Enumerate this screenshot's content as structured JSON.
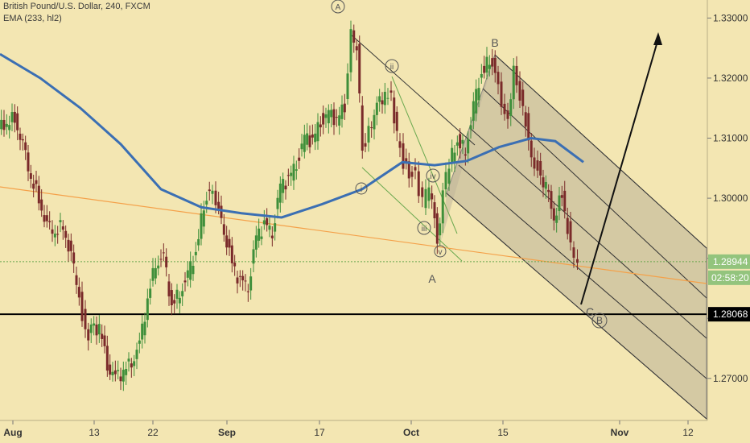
{
  "header": {
    "title": "British Pound/U.S. Dollar, 240, FXCM",
    "indicator": "EMA (233, hl2)"
  },
  "colors": {
    "background": "#f3e6b2",
    "up_candle": "#3f8f3a",
    "down_candle": "#7a2a2a",
    "ema": "#3b6fb3",
    "trendline": "#f4a14a",
    "support": "#000000",
    "pitchfork_fill": "#bfb59a",
    "axis_panel": "#f3e6b2"
  },
  "chart_data": {
    "type": "line",
    "title": "British Pound/U.S. Dollar, 240, FXCM",
    "xlabel": "",
    "ylabel": "",
    "ylim": [
      1.263,
      1.333
    ],
    "x_ticks": [
      "Aug",
      "13",
      "22",
      "Sep",
      "17",
      "Oct",
      "15",
      "Nov",
      "12"
    ],
    "y_ticks": [
      1.27,
      1.28,
      1.29,
      1.3,
      1.31,
      1.32,
      1.33
    ],
    "y_tick_labels": [
      "1.27000",
      "1.28000",
      "1.29000",
      "1.30000",
      "1.31000",
      "1.32000",
      "1.33000"
    ],
    "series": [
      {
        "name": "British Pound/U.S. Dollar",
        "kind": "close",
        "points": [
          [
            0,
            1.3115
          ],
          [
            10,
            1.3125
          ],
          [
            20,
            1.3135
          ],
          [
            30,
            1.3085
          ],
          [
            40,
            1.3035
          ],
          [
            50,
            1.3
          ],
          [
            60,
            1.295
          ],
          [
            70,
            1.2945
          ],
          [
            80,
            1.2955
          ],
          [
            90,
            1.29
          ],
          [
            100,
            1.284
          ],
          [
            108,
            1.277
          ],
          [
            115,
            1.278
          ],
          [
            125,
            1.2785
          ],
          [
            135,
            1.2725
          ],
          [
            145,
            1.27
          ],
          [
            155,
            1.271
          ],
          [
            165,
            1.273
          ],
          [
            175,
            1.2755
          ],
          [
            185,
            1.283
          ],
          [
            195,
            1.2895
          ],
          [
            205,
            1.29
          ],
          [
            215,
            1.282
          ],
          [
            225,
            1.2845
          ],
          [
            235,
            1.287
          ],
          [
            245,
            1.291
          ],
          [
            255,
            1.299
          ],
          [
            262,
            1.3015
          ],
          [
            270,
            1.299
          ],
          [
            280,
            1.295
          ],
          [
            290,
            1.289
          ],
          [
            300,
            1.286
          ],
          [
            310,
            1.2855
          ],
          [
            320,
            1.2935
          ],
          [
            330,
            1.2955
          ],
          [
            340,
            1.2945
          ],
          [
            350,
            1.302
          ],
          [
            360,
            1.303
          ],
          [
            370,
            1.306
          ],
          [
            380,
            1.31
          ],
          [
            390,
            1.3095
          ],
          [
            400,
            1.313
          ],
          [
            410,
            1.314
          ],
          [
            420,
            1.313
          ],
          [
            430,
            1.3155
          ],
          [
            438,
            1.328
          ],
          [
            445,
            1.325
          ],
          [
            452,
            1.308
          ],
          [
            460,
            1.3115
          ],
          [
            470,
            1.315
          ],
          [
            480,
            1.3175
          ],
          [
            488,
            1.3165
          ],
          [
            495,
            1.31
          ],
          [
            503,
            1.306
          ],
          [
            510,
            1.3045
          ],
          [
            518,
            1.3035
          ],
          [
            527,
            1.299
          ],
          [
            535,
            1.302
          ],
          [
            545,
            1.2935
          ],
          [
            552,
            1.3005
          ],
          [
            560,
            1.306
          ],
          [
            570,
            1.3095
          ],
          [
            580,
            1.308
          ],
          [
            590,
            1.315
          ],
          [
            600,
            1.321
          ],
          [
            610,
            1.323
          ],
          [
            617,
            1.3215
          ],
          [
            625,
            1.315
          ],
          [
            633,
            1.3125
          ],
          [
            640,
            1.321
          ],
          [
            648,
            1.317
          ],
          [
            655,
            1.313
          ],
          [
            662,
            1.306
          ],
          [
            670,
            1.305
          ],
          [
            680,
            1.3015
          ],
          [
            690,
            1.297
          ],
          [
            700,
            1.3005
          ],
          [
            707,
            1.295
          ],
          [
            715,
            1.2895
          ],
          [
            720,
            1.2894
          ]
        ]
      },
      {
        "name": "EMA (233, hl2)",
        "kind": "ema",
        "points": [
          [
            0,
            1.324
          ],
          [
            50,
            1.32
          ],
          [
            100,
            1.315
          ],
          [
            150,
            1.309
          ],
          [
            200,
            1.3015
          ],
          [
            250,
            1.2985
          ],
          [
            300,
            1.2975
          ],
          [
            350,
            1.2968
          ],
          [
            400,
            1.299
          ],
          [
            450,
            1.3015
          ],
          [
            500,
            1.306
          ],
          [
            540,
            1.3055
          ],
          [
            580,
            1.3062
          ],
          [
            620,
            1.3085
          ],
          [
            660,
            1.31
          ],
          [
            690,
            1.3095
          ],
          [
            725,
            1.306
          ]
        ]
      }
    ],
    "current_price": 1.28944,
    "countdown": "02:58:20",
    "support_level": 1.28068,
    "support_label": "1.28068",
    "current_label": "1.28944",
    "wave_labels": {
      "big": [
        "A",
        "B"
      ],
      "small": [
        "i",
        "ii",
        "iii",
        "iv",
        "v"
      ],
      "letters": [
        "A",
        "B",
        "C"
      ]
    }
  }
}
